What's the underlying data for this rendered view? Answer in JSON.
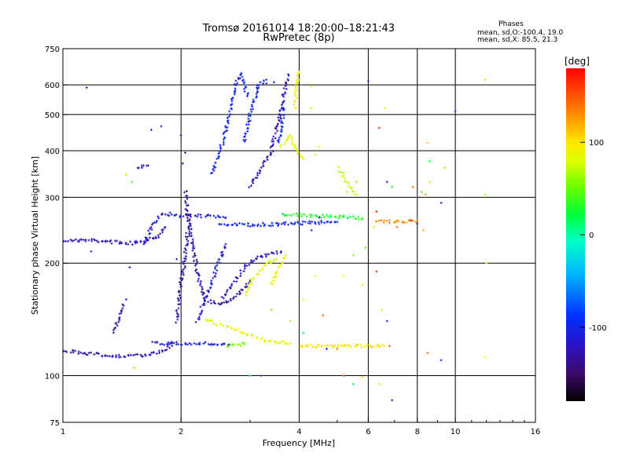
{
  "chart_data": {
    "type": "scatter",
    "title": "Tromsø 20161014 18:20:00–18:21:43",
    "subtitle": "RwPretec (8p)",
    "xlabel": "Frequency [MHz]",
    "ylabel": "Stationary phase Virtual Height [km]",
    "x_scale": "log",
    "y_scale": "log",
    "xlim": [
      1,
      16
    ],
    "ylim": [
      75,
      750
    ],
    "x_ticks": [
      1,
      2,
      4,
      6,
      8,
      10,
      16
    ],
    "x_tick_labels": [
      "1",
      "2",
      "4",
      "6",
      "8",
      "10",
      "16"
    ],
    "y_ticks": [
      75,
      100,
      200,
      300,
      400,
      500,
      600,
      750
    ],
    "y_tick_labels": [
      "75",
      "100",
      "200",
      "300",
      "400",
      "500",
      "600",
      "750"
    ],
    "grid": true,
    "legend_placement": "top-right",
    "legend": {
      "title": "Phases",
      "lines": [
        "mean, sd,O:-100.4, 19.0",
        "mean, sd,X:  85.5, 21.3"
      ]
    },
    "colorbar": {
      "label": "[deg]",
      "range": [
        -180,
        180
      ],
      "ticks": [
        -100,
        0,
        100
      ],
      "tick_labels": [
        "-100",
        "0",
        "100"
      ]
    },
    "traces": [
      {
        "x": [
          1.0,
          1.2,
          1.5,
          1.75,
          1.82
        ],
        "y": [
          230,
          230,
          226,
          236,
          250
        ],
        "phase": -125
      },
      {
        "x": [
          1.0,
          1.05,
          1.3,
          1.6,
          1.78,
          1.9
        ],
        "y": [
          117,
          116,
          113,
          113,
          116,
          122
        ],
        "phase": -125
      },
      {
        "x": [
          1.7,
          2.2,
          2.65
        ],
        "y": [
          122,
          122,
          121
        ],
        "phase": -110
      },
      {
        "x": [
          1.35,
          1.38,
          1.42
        ],
        "y": [
          130,
          140,
          155
        ],
        "phase": -125
      },
      {
        "x": [
          1.6,
          1.7,
          1.8,
          1.9,
          2.0,
          2.2,
          2.6
        ],
        "y": [
          225,
          255,
          272,
          270,
          268,
          268,
          265
        ],
        "phase": -110
      },
      {
        "x": [
          1.95,
          2.0,
          2.05,
          2.1
        ],
        "y": [
          140,
          175,
          210,
          260
        ],
        "phase": -125
      },
      {
        "x": [
          2.05,
          2.1,
          2.2,
          2.3,
          2.5,
          2.65,
          2.8,
          3.0
        ],
        "y": [
          310,
          250,
          190,
          160,
          155,
          158,
          165,
          180
        ],
        "phase": -130
      },
      {
        "x": [
          2.2,
          2.4,
          2.6
        ],
        "y": [
          140,
          180,
          225
        ],
        "phase": -110
      },
      {
        "x": [
          2.55,
          2.7,
          2.9,
          3.1,
          3.3,
          3.6
        ],
        "y": [
          160,
          175,
          195,
          205,
          210,
          215
        ],
        "phase": -120
      },
      {
        "x": [
          2.3,
          2.5,
          2.7,
          2.9,
          3.1,
          3.3,
          3.5,
          3.8
        ],
        "y": [
          142,
          137,
          133,
          130,
          127,
          124,
          123,
          122
        ],
        "phase": 85
      },
      {
        "x": [
          2.6,
          2.7,
          2.8,
          2.9
        ],
        "y": [
          120,
          121,
          121,
          122
        ],
        "phase": 55
      },
      {
        "x": [
          2.9,
          3.1,
          3.3,
          3.5
        ],
        "y": [
          165,
          185,
          200,
          205
        ],
        "phase": 80
      },
      {
        "x": [
          3.4,
          3.55,
          3.7
        ],
        "y": [
          175,
          195,
          210
        ],
        "phase": 90
      },
      {
        "x": [
          2.4,
          2.6,
          2.75,
          2.85,
          2.95
        ],
        "y": [
          345,
          450,
          600,
          640,
          560
        ],
        "phase": -100
      },
      {
        "x": [
          2.9,
          3.0,
          3.15,
          3.3
        ],
        "y": [
          420,
          500,
          600,
          620
        ],
        "phase": -100
      },
      {
        "x": [
          3.0,
          3.2,
          3.4,
          3.6,
          3.75
        ],
        "y": [
          320,
          355,
          400,
          520,
          640
        ],
        "phase": -125
      },
      {
        "x": [
          3.55,
          3.65
        ],
        "y": [
          420,
          520
        ],
        "phase": -100
      },
      {
        "x": [
          3.6,
          3.8,
          3.95,
          4.1
        ],
        "y": [
          410,
          440,
          400,
          380
        ],
        "phase": 85
      },
      {
        "x": [
          3.9,
          3.95,
          4.0
        ],
        "y": [
          520,
          600,
          650
        ],
        "phase": 95
      },
      {
        "x": [
          2.5,
          3.0,
          3.5,
          4.0,
          4.5,
          5.0
        ],
        "y": [
          255,
          253,
          254,
          256,
          257,
          258
        ],
        "phase": -100
      },
      {
        "x": [
          3.6,
          4.2,
          5.0,
          5.8
        ],
        "y": [
          270,
          268,
          266,
          264
        ],
        "phase": 30
      },
      {
        "x": [
          6.3,
          7.0,
          7.6,
          8.0
        ],
        "y": [
          260,
          258,
          258,
          260
        ],
        "phase": 130
      },
      {
        "x": [
          4.0,
          4.6,
          5.2,
          5.8,
          6.6
        ],
        "y": [
          120,
          120,
          120,
          120,
          120
        ],
        "phase": 100
      },
      {
        "x": [
          5.0,
          5.2,
          5.4,
          5.6
        ],
        "y": [
          360,
          340,
          320,
          305
        ],
        "phase": 75
      },
      {
        "x": [
          1.55,
          1.65
        ],
        "y": [
          360,
          365
        ],
        "phase": -125
      }
    ],
    "scatter_points": [
      {
        "x": 1.15,
        "y": 590,
        "phase": -100
      },
      {
        "x": 1.68,
        "y": 455,
        "phase": -115
      },
      {
        "x": 1.78,
        "y": 465,
        "phase": -115
      },
      {
        "x": 1.45,
        "y": 345,
        "phase": 70
      },
      {
        "x": 1.5,
        "y": 330,
        "phase": 40
      },
      {
        "x": 1.95,
        "y": 205,
        "phase": -125
      },
      {
        "x": 1.48,
        "y": 195,
        "phase": -120
      },
      {
        "x": 1.45,
        "y": 160,
        "phase": -110
      },
      {
        "x": 1.18,
        "y": 215,
        "phase": -100
      },
      {
        "x": 1.52,
        "y": 105,
        "phase": 110
      },
      {
        "x": 2.0,
        "y": 440,
        "phase": -120
      },
      {
        "x": 3.12,
        "y": 590,
        "phase": -100
      },
      {
        "x": 3.3,
        "y": 605,
        "phase": -105
      },
      {
        "x": 3.45,
        "y": 610,
        "phase": -100
      },
      {
        "x": 4.3,
        "y": 595,
        "phase": 95
      },
      {
        "x": 4.3,
        "y": 520,
        "phase": 100
      },
      {
        "x": 4.4,
        "y": 390,
        "phase": 100
      },
      {
        "x": 4.5,
        "y": 410,
        "phase": 95
      },
      {
        "x": 5.3,
        "y": 310,
        "phase": 70
      },
      {
        "x": 5.6,
        "y": 330,
        "phase": 60
      },
      {
        "x": 6.6,
        "y": 520,
        "phase": 90
      },
      {
        "x": 6.4,
        "y": 460,
        "phase": 160
      },
      {
        "x": 6.7,
        "y": 330,
        "phase": -100
      },
      {
        "x": 6.9,
        "y": 320,
        "phase": 20
      },
      {
        "x": 7.8,
        "y": 320,
        "phase": 140
      },
      {
        "x": 8.4,
        "y": 305,
        "phase": 125
      },
      {
        "x": 8.6,
        "y": 330,
        "phase": 70
      },
      {
        "x": 8.2,
        "y": 310,
        "phase": 40
      },
      {
        "x": 8.5,
        "y": 420,
        "phase": 110
      },
      {
        "x": 8.6,
        "y": 375,
        "phase": 20
      },
      {
        "x": 9.4,
        "y": 360,
        "phase": 60
      },
      {
        "x": 10.0,
        "y": 510,
        "phase": -100
      },
      {
        "x": 11.9,
        "y": 620,
        "phase": 70
      },
      {
        "x": 11.9,
        "y": 305,
        "phase": 60
      },
      {
        "x": 12.0,
        "y": 200,
        "phase": 100
      },
      {
        "x": 8.0,
        "y": 255,
        "phase": -100
      },
      {
        "x": 8.3,
        "y": 245,
        "phase": 120
      },
      {
        "x": 6.3,
        "y": 275,
        "phase": 170
      },
      {
        "x": 6.2,
        "y": 250,
        "phase": 100
      },
      {
        "x": 7.1,
        "y": 250,
        "phase": 140
      },
      {
        "x": 6.3,
        "y": 190,
        "phase": 170
      },
      {
        "x": 6.5,
        "y": 150,
        "phase": 90
      },
      {
        "x": 6.7,
        "y": 140,
        "phase": -110
      },
      {
        "x": 5.8,
        "y": 175,
        "phase": 100
      },
      {
        "x": 5.5,
        "y": 210,
        "phase": 60
      },
      {
        "x": 5.9,
        "y": 220,
        "phase": 50
      },
      {
        "x": 5.2,
        "y": 185,
        "phase": 80
      },
      {
        "x": 4.4,
        "y": 185,
        "phase": 80
      },
      {
        "x": 4.1,
        "y": 160,
        "phase": 100
      },
      {
        "x": 4.6,
        "y": 145,
        "phase": 140
      },
      {
        "x": 3.4,
        "y": 150,
        "phase": 120
      },
      {
        "x": 3.8,
        "y": 140,
        "phase": 110
      },
      {
        "x": 4.1,
        "y": 130,
        "phase": 10
      },
      {
        "x": 4.7,
        "y": 118,
        "phase": -100
      },
      {
        "x": 5.2,
        "y": 100,
        "phase": 160
      },
      {
        "x": 5.5,
        "y": 95,
        "phase": 20
      },
      {
        "x": 5.8,
        "y": 99,
        "phase": 110
      },
      {
        "x": 6.4,
        "y": 95,
        "phase": 100
      },
      {
        "x": 6.9,
        "y": 86,
        "phase": -100
      },
      {
        "x": 9.2,
        "y": 110,
        "phase": -100
      },
      {
        "x": 11.9,
        "y": 112,
        "phase": 80
      },
      {
        "x": 8.5,
        "y": 115,
        "phase": 140
      },
      {
        "x": 6.8,
        "y": 120,
        "phase": 150
      },
      {
        "x": 4.3,
        "y": 245,
        "phase": -100
      },
      {
        "x": 4.5,
        "y": 265,
        "phase": -120
      },
      {
        "x": 3.0,
        "y": 100,
        "phase": 20
      },
      {
        "x": 3.2,
        "y": 100,
        "phase": -100
      },
      {
        "x": 2.05,
        "y": 395,
        "phase": -130
      },
      {
        "x": 2.02,
        "y": 370,
        "phase": -120
      },
      {
        "x": 6.0,
        "y": 615,
        "phase": -100
      },
      {
        "x": 5.0,
        "y": 118,
        "phase": 140
      },
      {
        "x": 9.2,
        "y": 290,
        "phase": -100
      },
      {
        "x": 7.7,
        "y": 260,
        "phase": 160
      }
    ]
  }
}
